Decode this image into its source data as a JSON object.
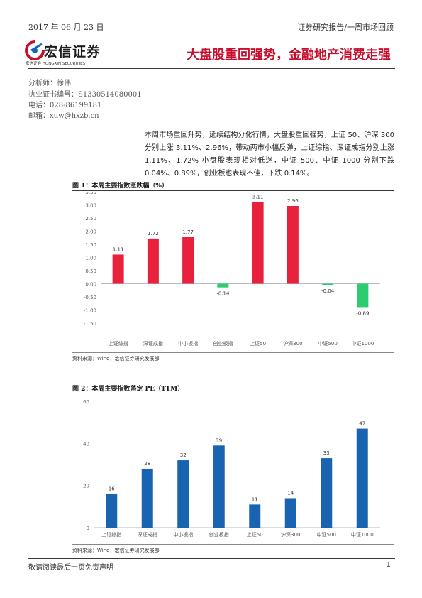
{
  "header": {
    "date": "2017 年 06 月 23 日",
    "report_type": "证券研究报告/一周市场回顾"
  },
  "logo": {
    "name_cn": "宏信证券",
    "name_en": "宏信证券 HONGXIN SECURITIES"
  },
  "title": "大盘股重回强势，金融地产消费走强",
  "analyst": {
    "name": "分析师：徐伟",
    "license": "执业证书编号：S1330514080001",
    "phone": "电话：028-86199181",
    "email": "邮箱：xuw@hxzb.cn"
  },
  "summary": "本周市场重回升势，延续结构分化行情，大盘股重回强势，上证 50、沪深 300 分别上涨 3.11%、2.96%，带动两市小幅反弹，上证综指、深证成指分别上涨 1.11%、1.72% 小盘股表现相对低迷，中证 500、中证 1000 分别下跌 0.04%、0.89%，创业板也表现不佳，下跌 0.14%。",
  "figure1_title": "图 1：本周主要指数涨跌幅（%）",
  "figure2_title": "图 2：本周主要指数落定 PE（TTM）",
  "source1": "资料来源：Wind，宏信证券研究发展部",
  "source2": "资料来源：Wind，宏信证券研究发展部",
  "footer": {
    "disclaimer": "敬请阅读最后一页免责声明",
    "page": "1"
  },
  "colors": {
    "positive": "#e8213c",
    "negative": "#2ecc71",
    "pe_bar": "#1a63b0",
    "title_red": "#c8102e"
  },
  "chart_data": [
    {
      "type": "bar",
      "categories": [
        "上证综指",
        "深证成指",
        "中小板指",
        "创业板指",
        "上证50",
        "沪深300",
        "中证500",
        "中证1000"
      ],
      "values": [
        1.11,
        1.72,
        1.77,
        -0.14,
        3.11,
        2.96,
        -0.04,
        -0.89
      ],
      "data_labels": [
        "1.11",
        "1.72",
        "1.77",
        "-0.14",
        "3.11",
        "2.96",
        "-0.04",
        "-0.89"
      ],
      "yticks": [
        "3.50",
        "3.00",
        "2.50",
        "2.00",
        "1.50",
        "1.00",
        "0.50",
        "0.00",
        "-0.50",
        "-1.00",
        "-1.50"
      ],
      "ylim": [
        -1.5,
        3.5
      ]
    },
    {
      "type": "bar",
      "categories": [
        "上证综指",
        "深证成指",
        "中小板指",
        "创业板指",
        "上证50",
        "沪深300",
        "中证500",
        "中证1000"
      ],
      "values": [
        16,
        28,
        32,
        39,
        11,
        14,
        33,
        47
      ],
      "data_labels": [
        "16",
        "28",
        "32",
        "39",
        "11",
        "14",
        "33",
        "47"
      ],
      "yticks": [
        "60",
        "40",
        "20",
        "0"
      ],
      "ylim": [
        0,
        60
      ]
    }
  ]
}
